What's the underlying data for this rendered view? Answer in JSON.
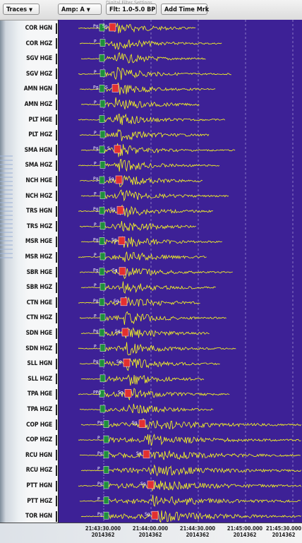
{
  "toolbar": {
    "traces_label": "Traces",
    "amp_label": "Amp: A",
    "filter_label": "Flt: 1.0-5.0 BP",
    "add_time_mark_label": "Add Time Mrk",
    "ghost_text": "Digital Filter Settings"
  },
  "colors": {
    "plot_background": "#3d2196",
    "waveform": "#ffff1e",
    "s_marker": "#e23030",
    "p_marker": "#1e8f3a",
    "time_line": "#cfc8ef"
  },
  "stations": [
    {
      "label": "COR HGN",
      "p_label": "Pg",
      "s_label": "Sg",
      "late": false
    },
    {
      "label": "COR HGZ",
      "p_label": "P",
      "s_label": "",
      "late": false
    },
    {
      "label": "SGV HGE",
      "p_label": "",
      "s_label": "",
      "late": false
    },
    {
      "label": "SGV HGZ",
      "p_label": "P",
      "s_label": "",
      "late": false
    },
    {
      "label": "AMN HGN",
      "p_label": "Pg",
      "s_label": "S",
      "late": false
    },
    {
      "label": "AMN HGZ",
      "p_label": "P",
      "s_label": "",
      "late": false
    },
    {
      "label": "PLT HGE",
      "p_label": "",
      "s_label": "",
      "late": false
    },
    {
      "label": "PLT HGZ",
      "p_label": "P",
      "s_label": "",
      "late": false
    },
    {
      "label": "SMA HGN",
      "p_label": "Pg",
      "s_label": "S",
      "late": false
    },
    {
      "label": "SMA HGZ",
      "p_label": "P",
      "s_label": "",
      "late": false
    },
    {
      "label": "NCH HGE",
      "p_label": "Pg",
      "s_label": "Sg",
      "late": false
    },
    {
      "label": "NCH HGZ",
      "p_label": "P",
      "s_label": "",
      "late": false
    },
    {
      "label": "TRS HGN",
      "p_label": "Pg",
      "s_label": "Sg",
      "late": false
    },
    {
      "label": "TRS HGZ",
      "p_label": "P",
      "s_label": "",
      "late": false
    },
    {
      "label": "MSR HGE",
      "p_label": "Pg",
      "s_label": "Sg",
      "late": false
    },
    {
      "label": "MSR HGZ",
      "p_label": "P",
      "s_label": "",
      "late": false
    },
    {
      "label": "SBR HGE",
      "p_label": "Pg",
      "s_label": "Sg",
      "late": false
    },
    {
      "label": "SBR HGZ",
      "p_label": "P",
      "s_label": "",
      "late": false
    },
    {
      "label": "CTN HGE",
      "p_label": "Pg",
      "s_label": "Sg",
      "late": false
    },
    {
      "label": "CTN HGZ",
      "p_label": "P",
      "s_label": "",
      "late": false
    },
    {
      "label": "SDN HGE",
      "p_label": "Pg",
      "s_label": "Sg",
      "late": false
    },
    {
      "label": "SDN HGZ",
      "p_label": "P",
      "s_label": "",
      "late": false
    },
    {
      "label": "SLL HGN",
      "p_label": "Pg",
      "s_label": "Sg",
      "late": false
    },
    {
      "label": "SLL HGZ",
      "p_label": "",
      "s_label": "",
      "late": false
    },
    {
      "label": "TPA HGE",
      "p_label": "PPg",
      "s_label": "Sg",
      "late": false
    },
    {
      "label": "TPA HGZ",
      "p_label": "",
      "s_label": "",
      "late": false
    },
    {
      "label": "COP HGE",
      "p_label": "Pg",
      "s_label": "Sg",
      "late": true
    },
    {
      "label": "COP HGZ",
      "p_label": "P",
      "s_label": "",
      "late": true
    },
    {
      "label": "RCU HGN",
      "p_label": "Pg",
      "s_label": "Sg",
      "late": true
    },
    {
      "label": "RCU HGZ",
      "p_label": "P",
      "s_label": "",
      "late": true
    },
    {
      "label": "PTT HGN",
      "p_label": "Pg",
      "s_label": "Sg",
      "late": true
    },
    {
      "label": "PTT HGZ",
      "p_label": "P",
      "s_label": "",
      "late": true
    },
    {
      "label": "TOR HGN",
      "p_label": "Pg",
      "s_label": "Sg",
      "late": true
    }
  ],
  "time_axis": [
    {
      "time": "21:43:30.000",
      "date": "2014362"
    },
    {
      "time": "21:44:00.000",
      "date": "2014362"
    },
    {
      "time": "21:44:30.000",
      "date": "2014362"
    },
    {
      "time": "21:45:00.000",
      "date": "2014362"
    },
    {
      "time": "21:45:30.000",
      "date": "2014362"
    }
  ]
}
